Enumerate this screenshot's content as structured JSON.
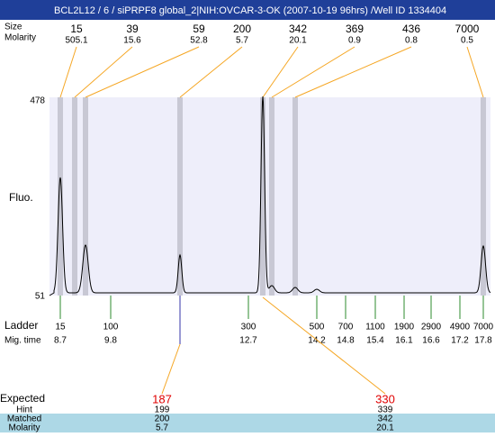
{
  "header": {
    "title": "BCL2L12 / 6 / siPRPF8 global_2|NIH:OVCAR-3-OK (2007-10-19 96hrs) /Well ID 1334404"
  },
  "top_peaks": {
    "size_label": "Size",
    "molarity_label": "Molarity",
    "sizes": [
      "15",
      "39",
      "59",
      "200",
      "342",
      "369",
      "436",
      "7000"
    ],
    "molarities": [
      "505.1",
      "15.6",
      "52.8",
      "5.7",
      "20.1",
      "0.9",
      "0.8",
      "0.5"
    ]
  },
  "plot": {
    "y_axis_label": "Fluo.",
    "y_max_label": "478",
    "y_min_label": "51"
  },
  "ladder": {
    "label": "Ladder",
    "time_label": "Mig. time",
    "sizes": [
      "15",
      "100",
      "300",
      "500",
      "700",
      "1100",
      "1900",
      "2900",
      "4900",
      "7000"
    ],
    "times": [
      "8.7",
      "9.8",
      "12.7",
      "14.2",
      "14.8",
      "15.4",
      "16.1",
      "16.6",
      "17.2",
      "17.8"
    ]
  },
  "expected": {
    "label": "Expected",
    "hint_label": "Hint",
    "matched_label": "Matched",
    "molarity_label": "Molarity",
    "items": [
      {
        "expected": "187",
        "hint": "199",
        "matched": "200",
        "molarity": "5.7"
      },
      {
        "expected": "330",
        "hint": "339",
        "matched": "342",
        "molarity": "20.1"
      }
    ]
  }
}
